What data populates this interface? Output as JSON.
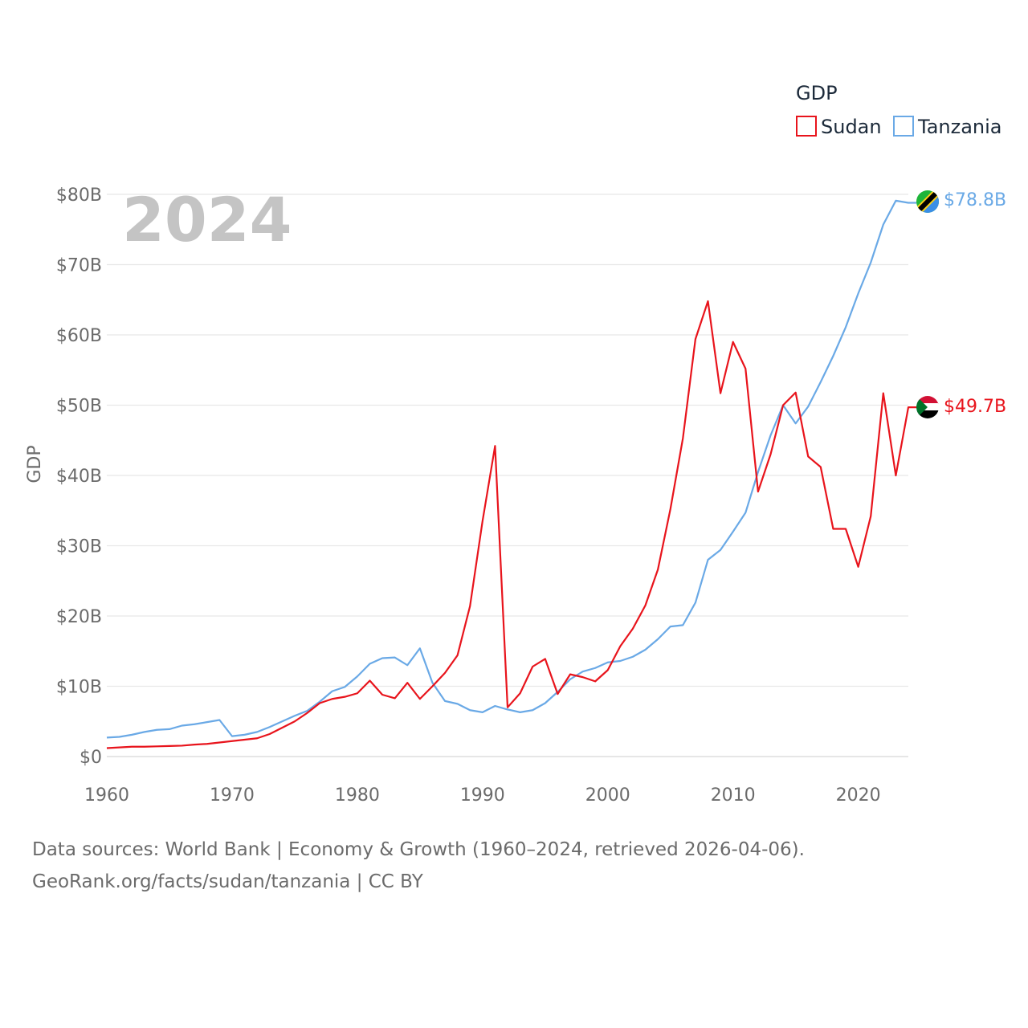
{
  "chart_data": {
    "type": "line",
    "title": "",
    "year_label": "2024",
    "xlabel": "",
    "ylabel": "GDP",
    "xlim": [
      1960,
      2024
    ],
    "ylim": [
      0,
      80
    ],
    "x_ticks": [
      1960,
      1970,
      1980,
      1990,
      2000,
      2010,
      2020
    ],
    "y_ticks": [
      {
        "value": 0,
        "label": "$0"
      },
      {
        "value": 10,
        "label": "$10B"
      },
      {
        "value": 20,
        "label": "$20B"
      },
      {
        "value": 30,
        "label": "$30B"
      },
      {
        "value": 40,
        "label": "$40B"
      },
      {
        "value": 50,
        "label": "$50B"
      },
      {
        "value": 60,
        "label": "$60B"
      },
      {
        "value": 70,
        "label": "$70B"
      },
      {
        "value": 80,
        "label": "$80B"
      }
    ],
    "legend": {
      "title": "GDP",
      "position": "top-right"
    },
    "grid": true,
    "x": [
      1960,
      1961,
      1962,
      1963,
      1964,
      1965,
      1966,
      1967,
      1968,
      1969,
      1970,
      1971,
      1972,
      1973,
      1974,
      1975,
      1976,
      1977,
      1978,
      1979,
      1980,
      1981,
      1982,
      1983,
      1984,
      1985,
      1986,
      1987,
      1988,
      1989,
      1990,
      1991,
      1992,
      1993,
      1994,
      1995,
      1996,
      1997,
      1998,
      1999,
      2000,
      2001,
      2002,
      2003,
      2004,
      2005,
      2006,
      2007,
      2008,
      2009,
      2010,
      2011,
      2012,
      2013,
      2014,
      2015,
      2016,
      2017,
      2018,
      2019,
      2020,
      2021,
      2022,
      2023,
      2024
    ],
    "series": [
      {
        "name": "Sudan",
        "color": "#e8141c",
        "end_label": "$49.7B",
        "flag": "sudan-flag",
        "values": [
          1.2,
          1.3,
          1.4,
          1.4,
          1.45,
          1.5,
          1.55,
          1.7,
          1.8,
          2.0,
          2.2,
          2.4,
          2.6,
          3.2,
          4.1,
          5.0,
          6.2,
          7.6,
          8.2,
          8.5,
          9.0,
          10.8,
          8.8,
          8.3,
          10.5,
          8.2,
          10.0,
          11.9,
          14.4,
          21.4,
          33.5,
          44.2,
          7.0,
          9.0,
          12.8,
          13.9,
          8.9,
          11.7,
          11.3,
          10.7,
          12.3,
          15.7,
          18.2,
          21.5,
          26.6,
          35.2,
          45.3,
          59.4,
          64.8,
          51.7,
          59.0,
          55.2,
          37.7,
          43.0,
          50.0,
          51.8,
          42.7,
          41.2,
          32.4,
          32.4,
          27.0,
          34.2,
          51.7,
          40.0,
          49.7
        ]
      },
      {
        "name": "Tanzania",
        "color": "#6aa9e6",
        "end_label": "$78.8B",
        "flag": "tanzania-flag",
        "values": [
          2.7,
          2.8,
          3.1,
          3.5,
          3.8,
          3.9,
          4.4,
          4.6,
          4.9,
          5.2,
          2.9,
          3.1,
          3.5,
          4.2,
          5.0,
          5.8,
          6.5,
          7.8,
          9.3,
          9.9,
          11.4,
          13.2,
          14.0,
          14.1,
          13.0,
          15.4,
          10.5,
          7.9,
          7.5,
          6.6,
          6.3,
          7.2,
          6.7,
          6.3,
          6.6,
          7.6,
          9.2,
          11.0,
          12.1,
          12.6,
          13.4,
          13.6,
          14.2,
          15.2,
          16.7,
          18.5,
          18.7,
          21.9,
          28.0,
          29.4,
          32.0,
          34.7,
          40.5,
          45.7,
          50.0,
          47.4,
          49.8,
          53.3,
          57.0,
          61.1,
          65.9,
          70.3,
          75.7,
          79.1,
          78.8
        ]
      }
    ]
  },
  "footer": {
    "line1": "Data sources: World Bank | Economy & Growth (1960–2024, retrieved 2026-04-06).",
    "line2": "GeoRank.org/facts/sudan/tanzania | CC BY"
  }
}
